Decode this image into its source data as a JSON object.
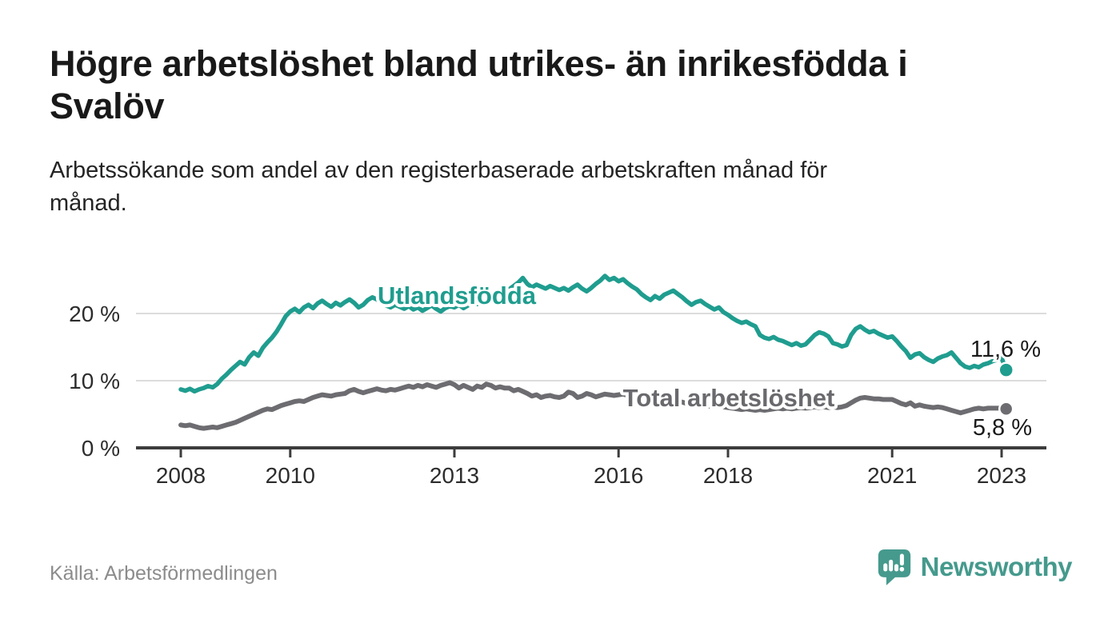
{
  "header": {
    "title_lines": [
      "Högre arbetslöshet bland utrikes- än inrikesfödda i",
      "Svalöv"
    ],
    "subtitle_lines": [
      "Arbetssökande som andel av den registerbaserade arbetskraften månad för",
      "månad."
    ]
  },
  "footer": {
    "source": "Källa: Arbetsförmedlingen",
    "brand": "Newsworthy",
    "brand_color": "#459a8d",
    "brand_icon": "speech-bubble-bar-chart-icon"
  },
  "chart_data": {
    "type": "line",
    "title": "Högre arbetslöshet bland utrikes- än inrikesfödda i Svalöv",
    "subtitle": "Arbetssökande som andel av den registerbaserade arbetskraften månad för månad.",
    "x_unit": "monthly points, Jan 2008 – Feb 2023",
    "x_start_year": 2008,
    "x_interval_months": 1,
    "xlim": [
      2007.2,
      2023.9
    ],
    "ylim": [
      0,
      27
    ],
    "grid": "horizontal",
    "legend_position": "inline-labels",
    "x_ticks": [
      {
        "year": 2008,
        "label": "2008"
      },
      {
        "year": 2010,
        "label": "2010"
      },
      {
        "year": 2013,
        "label": "2013"
      },
      {
        "year": 2016,
        "label": "2016"
      },
      {
        "year": 2018,
        "label": "2018"
      },
      {
        "year": 2021,
        "label": "2021"
      },
      {
        "year": 2023,
        "label": "2023"
      }
    ],
    "y_ticks": [
      {
        "value": 0,
        "label": "0 %"
      },
      {
        "value": 10,
        "label": "10 %"
      },
      {
        "value": 20,
        "label": "20 %"
      }
    ],
    "series": [
      {
        "name": "Utlandsfödda",
        "color": "#1f9d8f",
        "end_label": "11,6 %",
        "end_value": 11.6,
        "values": [
          8.7,
          8.5,
          8.8,
          8.4,
          8.7,
          8.9,
          9.2,
          9.0,
          9.5,
          10.3,
          10.9,
          11.6,
          12.2,
          12.8,
          12.4,
          13.5,
          14.2,
          13.7,
          14.9,
          15.7,
          16.4,
          17.3,
          18.4,
          19.6,
          20.3,
          20.7,
          20.2,
          20.9,
          21.3,
          20.8,
          21.5,
          21.9,
          21.4,
          21.0,
          21.6,
          21.2,
          21.7,
          22.1,
          21.6,
          20.9,
          21.3,
          22.0,
          22.4,
          22.1,
          21.6,
          21.2,
          20.9,
          21.3,
          21.0,
          20.7,
          21.1,
          20.6,
          20.9,
          20.4,
          20.8,
          21.2,
          20.7,
          20.3,
          20.8,
          21.1,
          20.9,
          21.3,
          20.8,
          21.2,
          21.7,
          21.4,
          21.9,
          22.4,
          22.0,
          22.7,
          23.3,
          23.0,
          23.6,
          24.1,
          24.6,
          25.3,
          24.4,
          23.9,
          24.3,
          24.0,
          23.7,
          24.1,
          23.8,
          23.5,
          23.8,
          23.4,
          23.9,
          24.3,
          23.7,
          23.3,
          23.8,
          24.4,
          24.9,
          25.6,
          25.0,
          25.3,
          24.8,
          25.1,
          24.5,
          24.0,
          23.6,
          22.9,
          22.4,
          22.0,
          22.6,
          22.2,
          22.8,
          23.1,
          23.4,
          22.9,
          22.4,
          21.8,
          21.3,
          21.7,
          21.9,
          21.4,
          21.0,
          20.6,
          20.9,
          20.2,
          19.8,
          19.3,
          18.9,
          18.6,
          18.8,
          18.4,
          18.1,
          16.8,
          16.4,
          16.2,
          16.5,
          16.1,
          15.9,
          15.6,
          15.3,
          15.6,
          15.2,
          15.4,
          16.1,
          16.8,
          17.2,
          17.0,
          16.6,
          15.6,
          15.4,
          15.1,
          15.3,
          16.8,
          17.7,
          18.1,
          17.6,
          17.2,
          17.4,
          17.0,
          16.7,
          16.4,
          16.6,
          15.9,
          15.1,
          14.4,
          13.4,
          13.9,
          14.1,
          13.5,
          13.1,
          12.8,
          13.3,
          13.6,
          13.8,
          14.2,
          13.4,
          12.6,
          12.1,
          11.9,
          12.2,
          12.0,
          12.4,
          12.6,
          12.9,
          13.1,
          13.4,
          11.6
        ]
      },
      {
        "name": "Total arbetslöshet",
        "color": "#6d6c70",
        "end_label": "5,8 %",
        "end_value": 5.8,
        "values": [
          3.4,
          3.3,
          3.4,
          3.2,
          3.0,
          2.9,
          3.0,
          3.1,
          3.0,
          3.2,
          3.4,
          3.6,
          3.8,
          4.1,
          4.4,
          4.7,
          5.0,
          5.3,
          5.6,
          5.8,
          5.7,
          6.0,
          6.3,
          6.5,
          6.7,
          6.9,
          7.0,
          6.9,
          7.2,
          7.5,
          7.7,
          7.9,
          7.8,
          7.7,
          7.9,
          8.0,
          8.1,
          8.5,
          8.7,
          8.4,
          8.2,
          8.4,
          8.6,
          8.8,
          8.6,
          8.5,
          8.7,
          8.6,
          8.8,
          9.0,
          9.2,
          9.0,
          9.3,
          9.1,
          9.4,
          9.2,
          9.0,
          9.3,
          9.5,
          9.7,
          9.4,
          8.9,
          9.3,
          9.0,
          8.7,
          9.2,
          9.0,
          9.5,
          9.3,
          8.9,
          9.1,
          8.9,
          8.9,
          8.5,
          8.7,
          8.4,
          8.1,
          7.7,
          7.9,
          7.5,
          7.7,
          7.8,
          7.6,
          7.5,
          7.7,
          8.3,
          8.1,
          7.5,
          7.7,
          8.1,
          7.9,
          7.6,
          7.8,
          8.0,
          7.9,
          7.8,
          7.9,
          8.0,
          7.8,
          7.6,
          7.7,
          7.5,
          7.4,
          7.2,
          7.3,
          7.1,
          7.0,
          7.1,
          7.0,
          6.9,
          6.8,
          6.6,
          6.5,
          6.6,
          6.4,
          6.3,
          6.2,
          6.1,
          6.2,
          6.1,
          6.0,
          5.9,
          5.8,
          5.7,
          5.8,
          5.7,
          5.6,
          5.7,
          5.6,
          5.7,
          5.8,
          5.9,
          5.8,
          5.9,
          5.8,
          5.9,
          6.0,
          5.9,
          6.0,
          6.1,
          6.0,
          6.1,
          6.0,
          6.1,
          6.0,
          6.1,
          6.3,
          6.7,
          7.1,
          7.4,
          7.5,
          7.4,
          7.3,
          7.3,
          7.2,
          7.2,
          7.2,
          6.9,
          6.6,
          6.4,
          6.7,
          6.2,
          6.4,
          6.2,
          6.1,
          6.0,
          6.1,
          6.0,
          5.8,
          5.6,
          5.4,
          5.2,
          5.4,
          5.6,
          5.8,
          5.9,
          5.8,
          5.9,
          5.9,
          5.9,
          5.9,
          5.8
        ]
      }
    ]
  }
}
